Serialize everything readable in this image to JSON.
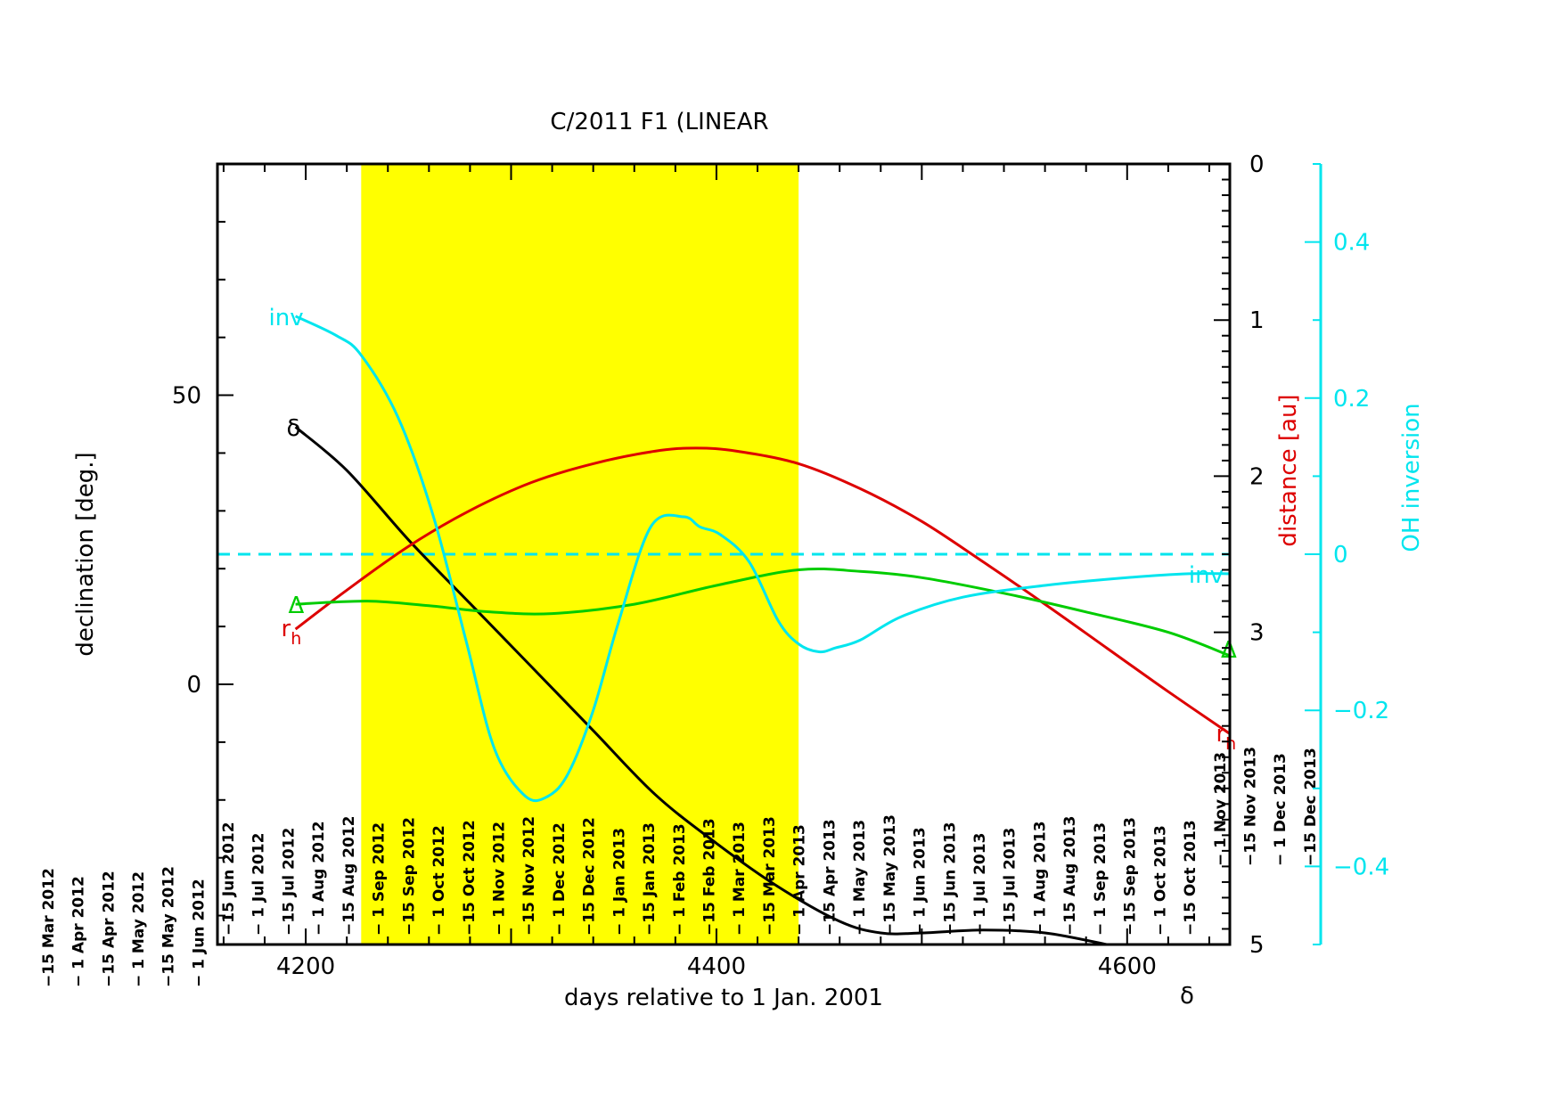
{
  "chart_data": {
    "type": "line",
    "title": "C/2011 F1 (LINEAR",
    "xlabel": "days relative to 1 Jan. 2001",
    "ylabel_left": "declination [deg.]",
    "ylabel_right_prefix": "distance",
    "ylabel_right_unit": "[au]",
    "ylabel_right2": "OH inversion",
    "xlim": [
      4157,
      4650
    ],
    "ylim_left": [
      -45,
      90
    ],
    "ylim_right": [
      0,
      5
    ],
    "ylim_right_reversed": true,
    "ylim_right2": [
      -0.5,
      0.5
    ],
    "x_ticks": [
      4200,
      4400,
      4600
    ],
    "y_ticks_left": [
      0,
      50
    ],
    "y_ticks_right": [
      0,
      1,
      2,
      3,
      5
    ],
    "y_ticks_right2": [
      -0.4,
      -0.2,
      0,
      0.2,
      0.4
    ],
    "x_tick_labels": [
      "4200",
      "4400",
      "4600"
    ],
    "y_tick_labels_left": [
      "0",
      "50"
    ],
    "y_tick_labels_right": [
      "0",
      "1",
      "2",
      "3",
      "5"
    ],
    "y_tick_labels_right2": [
      "−0.4",
      "−0.2",
      "0",
      "0.2",
      "0.4"
    ],
    "observable_window": [
      4227,
      4440
    ],
    "zero_inversion_line": 0,
    "series": [
      {
        "name": "δ",
        "axis": "left",
        "color": "#000000",
        "x": [
          4195,
          4220,
          4250,
          4280,
          4310,
          4340,
          4370,
          4400,
          4430,
          4460,
          4480,
          4500,
          4530,
          4560,
          4590
        ],
        "y": [
          44.5,
          37,
          25,
          14,
          3,
          -8,
          -19,
          -27.5,
          -35,
          -41,
          -43,
          -43,
          -42.5,
          -43,
          -45
        ]
      },
      {
        "name": "r",
        "name_subscript": "h",
        "axis": "right",
        "color": "#dd0000",
        "x": [
          4195,
          4220,
          4250,
          4280,
          4310,
          4340,
          4370,
          4390,
          4410,
          4440,
          4470,
          4500,
          4530,
          4560,
          4590,
          4620,
          4650
        ],
        "y": [
          2.98,
          2.73,
          2.45,
          2.22,
          2.04,
          1.92,
          1.84,
          1.82,
          1.84,
          1.92,
          2.08,
          2.29,
          2.55,
          2.82,
          3.1,
          3.38,
          3.65
        ]
      },
      {
        "name": "Δ",
        "axis": "right",
        "color": "#00cc00",
        "x": [
          4195,
          4230,
          4260,
          4290,
          4320,
          4360,
          4400,
          4440,
          4470,
          4500,
          4540,
          4580,
          4620,
          4650
        ],
        "y": [
          2.82,
          2.8,
          2.83,
          2.87,
          2.88,
          2.82,
          2.7,
          2.6,
          2.61,
          2.65,
          2.75,
          2.87,
          3.0,
          3.15
        ]
      },
      {
        "name": "inv",
        "axis": "right2",
        "color": "#00e5ee",
        "x": [
          4195,
          4215,
          4227,
          4245,
          4262,
          4278,
          4292,
          4307,
          4318,
          4328,
          4340,
          4352,
          4368,
          4384,
          4392,
          4402,
          4416,
          4430,
          4440,
          4450,
          4458,
          4470,
          4490,
          4520,
          4560,
          4600,
          4630,
          4650
        ],
        "y": [
          0.305,
          0.28,
          0.255,
          0.175,
          0.05,
          -0.11,
          -0.25,
          -0.31,
          -0.31,
          -0.28,
          -0.2,
          -0.09,
          0.035,
          0.048,
          0.035,
          0.025,
          -0.01,
          -0.085,
          -0.115,
          -0.125,
          -0.12,
          -0.11,
          -0.08,
          -0.055,
          -0.04,
          -0.03,
          -0.025,
          -0.025
        ]
      }
    ],
    "date_labels": [
      "−15 Mar 2012",
      "− 1 Apr 2012",
      "−15 Apr 2012",
      "− 1 May 2012",
      "−15 May 2012",
      "− 1 Jun 2012",
      "−15 Jun 2012",
      "− 1 Jul 2012",
      "−15 Jul 2012",
      "− 1 Aug 2012",
      "−15 Aug 2012",
      "− 1 Sep 2012",
      "−15 Sep 2012",
      "− 1 Oct 2012",
      "−15 Oct 2012",
      "− 1 Nov 2012",
      "−15 Nov 2012",
      "− 1 Dec 2012",
      "−15 Dec 2012",
      "− 1 Jan 2013",
      "−15 Jan 2013",
      "− 1 Feb 2013",
      "−15 Feb 2013",
      "− 1 Mar 2013",
      "−15 Mar 2013",
      "− 1 Apr 2013",
      "−15 Apr 2013",
      "− 1 May 2013",
      "−15 May 2013",
      "− 1 Jun 2013",
      "−15 Jun 2013",
      "− 1 Jul 2013",
      "−15 Jul 2013",
      "− 1 Aug 2013",
      "−15 Aug 2013",
      "− 1 Sep 2013",
      "−15 Sep 2013",
      "− 1 Oct 2013",
      "−15 Oct 2013",
      "− 1 Nov 2013",
      "−15 Nov 2013",
      "− 1 Dec 2013",
      "−15 Dec 2013"
    ],
    "bottom_right_symbol": "δ",
    "grid": false,
    "legend": "inline labels at line ends"
  }
}
